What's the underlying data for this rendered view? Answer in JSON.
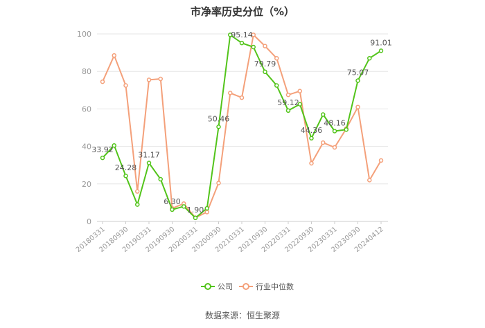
{
  "chart_data": {
    "type": "line",
    "title": "市净率历史分位（%）",
    "source": "数据来源：恒生聚源",
    "ylim": [
      0,
      100
    ],
    "yticks": [
      0,
      20,
      40,
      60,
      80,
      100
    ],
    "ytick_labels": [
      "0",
      "20",
      "40",
      "60",
      "80",
      "100"
    ],
    "xtick_labels": [
      "20180331",
      "20180930",
      "20190331",
      "20190930",
      "20200331",
      "20200930",
      "20210331",
      "20210930",
      "20220331",
      "20220930",
      "20230331",
      "20230930",
      "20240412"
    ],
    "grid": true,
    "legend_position": "bottom-center",
    "x": [
      "20180331",
      "20180630",
      "20180930",
      "20181231",
      "20190331",
      "20190630",
      "20190930",
      "20191231",
      "20200331",
      "20200630",
      "20200930",
      "20201231",
      "20210331",
      "20210630",
      "20210930",
      "20211231",
      "20220331",
      "20220630",
      "20220930",
      "20221231",
      "20230331",
      "20230630",
      "20230930",
      "20231231",
      "20240412"
    ],
    "series": [
      {
        "name": "公司",
        "color": "#52c41a",
        "values": [
          33.92,
          40.5,
          24.28,
          9.0,
          31.17,
          22.5,
          6.3,
          8.0,
          1.9,
          7.0,
          50.46,
          99.5,
          95.14,
          93.0,
          79.79,
          72.5,
          59.12,
          62.5,
          44.36,
          57.0,
          48.16,
          49.0,
          75.07,
          87.0,
          91.01
        ],
        "labels": [
          "33.92",
          "",
          "24.28",
          "",
          "31.17",
          "",
          "6.30",
          "",
          "1.90",
          "",
          "50.46",
          "",
          "95.14",
          "",
          "79.79",
          "",
          "59.12",
          "",
          "44.36",
          "",
          "48.16",
          "",
          "75.07",
          "",
          "91.01"
        ]
      },
      {
        "name": "行业中位数",
        "color": "#f4a07a",
        "values": [
          74.5,
          88.5,
          72.5,
          16.0,
          75.5,
          76.0,
          7.0,
          9.5,
          2.0,
          5.0,
          20.5,
          68.5,
          66.0,
          99.5,
          93.5,
          87.0,
          67.5,
          69.5,
          31.0,
          42.0,
          39.5,
          49.5,
          61.0,
          22.0,
          32.5
        ]
      }
    ]
  }
}
